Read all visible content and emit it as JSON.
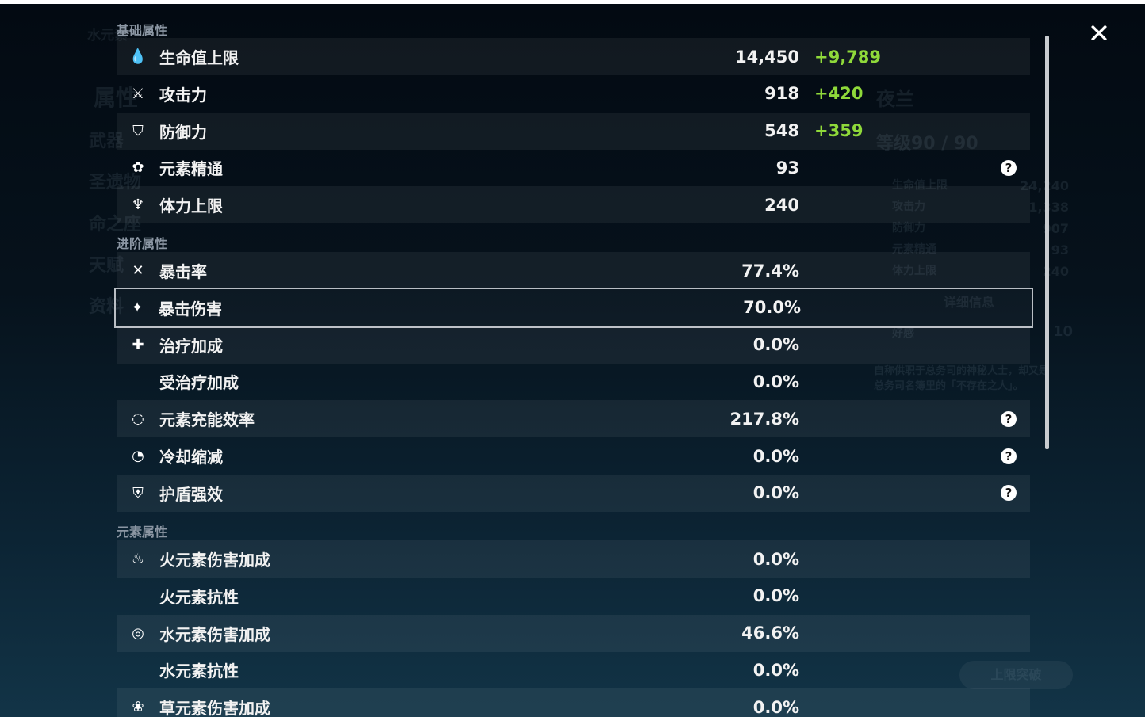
{
  "background": {
    "element_label": "水元素",
    "menu": [
      "属性",
      "武器",
      "圣遗物",
      "命之座",
      "天赋",
      "资料"
    ],
    "character": {
      "name": "夜兰",
      "level": "等级90 / 90",
      "stats": [
        [
          "生命值上限",
          "24,240"
        ],
        [
          "攻击力",
          "1,338"
        ],
        [
          "防御力",
          "907"
        ],
        [
          "元素精通",
          "93"
        ],
        [
          "体力上限",
          "240"
        ]
      ],
      "details_button": "详细信息",
      "friendship_label": "好感",
      "friendship": "10",
      "description": "自称供职于总务司的神秘人士，却又是总务司名簿里的「不存在之人」。",
      "ascend_button": "上限突破"
    }
  },
  "sections": [
    {
      "title": "基础属性",
      "rows": [
        {
          "icon": "hp-drop-icon",
          "label": "生命值上限",
          "value": "14,450",
          "bonus": "+9,789"
        },
        {
          "icon": "sword-icon",
          "label": "攻击力",
          "value": "918",
          "bonus": "+420"
        },
        {
          "icon": "shield-icon",
          "label": "防御力",
          "value": "548",
          "bonus": "+359"
        },
        {
          "icon": "elemental-mastery-icon",
          "label": "元素精通",
          "value": "93",
          "help": true
        },
        {
          "icon": "stamina-icon",
          "label": "体力上限",
          "value": "240"
        }
      ]
    },
    {
      "title": "进阶属性",
      "rows": [
        {
          "icon": "crit-rate-icon",
          "label": "暴击率",
          "value": "77.4%"
        },
        {
          "icon": "crit-dmg-icon",
          "label": "暴击伤害",
          "value": "70.0%",
          "selected": true
        },
        {
          "icon": "healing-cross-icon",
          "label": "治疗加成",
          "value": "0.0%"
        },
        {
          "icon": "",
          "label": "受治疗加成",
          "value": "0.0%"
        },
        {
          "icon": "energy-recharge-icon",
          "label": "元素充能效率",
          "value": "217.8%",
          "help": true
        },
        {
          "icon": "cooldown-icon",
          "label": "冷却缩减",
          "value": "0.0%",
          "help": true
        },
        {
          "icon": "shield-strength-icon",
          "label": "护盾强效",
          "value": "0.0%",
          "help": true
        }
      ]
    },
    {
      "title": "元素属性",
      "rows": [
        {
          "icon": "pyro-icon",
          "label": "火元素伤害加成",
          "value": "0.0%"
        },
        {
          "icon": "",
          "label": "火元素抗性",
          "value": "0.0%"
        },
        {
          "icon": "hydro-icon",
          "label": "水元素伤害加成",
          "value": "46.6%"
        },
        {
          "icon": "",
          "label": "水元素抗性",
          "value": "0.0%"
        },
        {
          "icon": "dendro-icon",
          "label": "草元素伤害加成",
          "value": "0.0%"
        }
      ]
    }
  ],
  "help_glyph": "?",
  "close_glyph": "✕"
}
